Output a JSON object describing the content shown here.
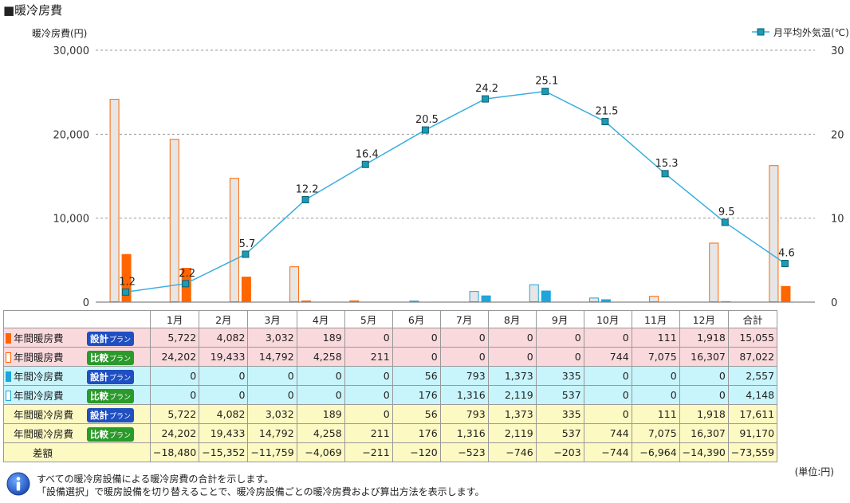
{
  "title": "■暖冷房費",
  "chart_data": {
    "type": "bar+line",
    "ylabel_left": "暖冷房費(円)",
    "ylabel_right": "月平均外気温(℃)",
    "left_ticks": [
      "0",
      "10,000",
      "20,000",
      "30,000"
    ],
    "right_ticks": [
      "0",
      "10",
      "20",
      "30"
    ],
    "ylim_left": [
      0,
      30000
    ],
    "ylim_right": [
      0,
      30
    ],
    "categories": [
      "1月",
      "2月",
      "3月",
      "4月",
      "5月",
      "6月",
      "7月",
      "8月",
      "9月",
      "10月",
      "11月",
      "12月"
    ],
    "series": [
      {
        "name": "年間暖房費 設計プラン",
        "color": "#ff6600",
        "style": "fill",
        "values": [
          5722,
          4082,
          3032,
          189,
          0,
          0,
          0,
          0,
          0,
          0,
          111,
          1918
        ]
      },
      {
        "name": "年間暖房費 比較プラン",
        "color": "#ff6600",
        "style": "outline",
        "values": [
          24202,
          19433,
          14792,
          4258,
          211,
          0,
          0,
          0,
          0,
          744,
          7075,
          16307
        ]
      },
      {
        "name": "年間冷房費 設計プラン",
        "color": "#1ea5dc",
        "style": "fill",
        "values": [
          0,
          0,
          0,
          0,
          0,
          56,
          793,
          1373,
          335,
          0,
          0,
          0
        ]
      },
      {
        "name": "年間冷房費 比較プラン",
        "color": "#1ea5dc",
        "style": "outline",
        "values": [
          0,
          0,
          0,
          0,
          0,
          176,
          1316,
          2119,
          537,
          0,
          0,
          0
        ]
      }
    ],
    "line": {
      "name": "月平均外気温(℃)",
      "color": "#39aee0",
      "values": [
        1.2,
        2.2,
        5.7,
        12.2,
        16.4,
        20.5,
        24.2,
        25.1,
        21.5,
        15.3,
        9.5,
        4.6
      ],
      "labels": [
        "1.2",
        "2.2",
        "5.7",
        "12.2",
        "16.4",
        "20.5",
        "24.2",
        "25.1",
        "21.5",
        "15.3",
        "9.5",
        "4.6"
      ]
    },
    "grid": true,
    "legend_position": "top-right"
  },
  "table": {
    "headers": [
      "1月",
      "2月",
      "3月",
      "4月",
      "5月",
      "6月",
      "7月",
      "8月",
      "9月",
      "10月",
      "11月",
      "12月",
      "合計"
    ],
    "badge_design": "設計",
    "badge_compare": "比較",
    "badge_sub": "プラン",
    "rows": [
      {
        "label": "年間暖房費",
        "badge": "design",
        "swatch": "fill-o",
        "cls": "r-pink",
        "values": [
          "5,722",
          "4,082",
          "3,032",
          "189",
          "0",
          "0",
          "0",
          "0",
          "0",
          "0",
          "111",
          "1,918",
          "15,055"
        ]
      },
      {
        "label": "年間暖房費",
        "badge": "compare",
        "swatch": "out-o",
        "cls": "r-pink",
        "values": [
          "24,202",
          "19,433",
          "14,792",
          "4,258",
          "211",
          "0",
          "0",
          "0",
          "0",
          "744",
          "7,075",
          "16,307",
          "87,022"
        ]
      },
      {
        "label": "年間冷房費",
        "badge": "design",
        "swatch": "fill-b",
        "cls": "r-blue",
        "values": [
          "0",
          "0",
          "0",
          "0",
          "0",
          "56",
          "793",
          "1,373",
          "335",
          "0",
          "0",
          "0",
          "2,557"
        ]
      },
      {
        "label": "年間冷房費",
        "badge": "compare",
        "swatch": "out-b",
        "cls": "r-blue",
        "values": [
          "0",
          "0",
          "0",
          "0",
          "0",
          "176",
          "1,316",
          "2,119",
          "537",
          "0",
          "0",
          "0",
          "4,148"
        ]
      },
      {
        "label": "年間暖冷房費",
        "badge": "design",
        "swatch": "none",
        "cls": "r-yel",
        "values": [
          "5,722",
          "4,082",
          "3,032",
          "189",
          "0",
          "56",
          "793",
          "1,373",
          "335",
          "0",
          "111",
          "1,918",
          "17,611"
        ]
      },
      {
        "label": "年間暖冷房費",
        "badge": "compare",
        "swatch": "none",
        "cls": "r-yel",
        "values": [
          "24,202",
          "19,433",
          "14,792",
          "4,258",
          "211",
          "176",
          "1,316",
          "2,119",
          "537",
          "744",
          "7,075",
          "16,307",
          "91,170"
        ]
      },
      {
        "label": "差額",
        "badge": "",
        "swatch": "none",
        "cls": "r-yel",
        "values": [
          "−18,480",
          "−15,352",
          "−11,759",
          "−4,069",
          "−211",
          "−120",
          "−523",
          "−746",
          "−203",
          "−744",
          "−6,964",
          "−14,390",
          "−73,559"
        ]
      }
    ]
  },
  "unit": "(単位:円)",
  "notes": [
    "すべての暖冷房設備による暖冷房費の合計を示します。",
    "「設備選択」で暖房設備を切り替えることで、暖冷房設備ごとの暖冷房費および算出方法を表示します。"
  ]
}
